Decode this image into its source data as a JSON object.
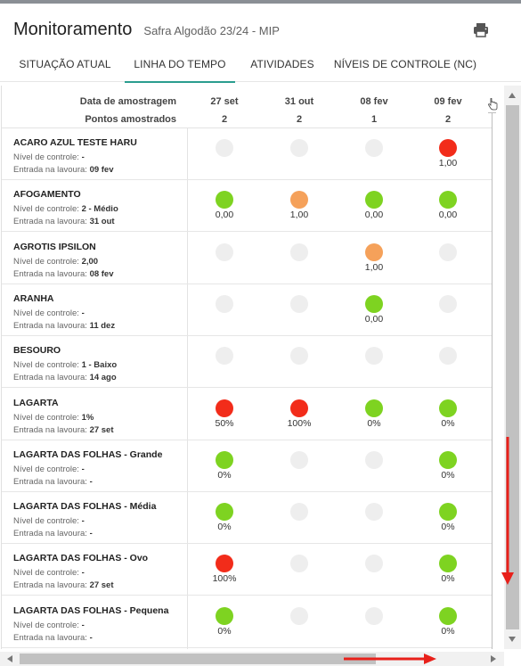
{
  "header": {
    "title": "Monitoramento",
    "subtitle": "Safra Algodão 23/24 - MIP",
    "print_icon": "printer-icon"
  },
  "tabs": [
    {
      "label": "SITUAÇÃO ATUAL",
      "active": false
    },
    {
      "label": "LINHA DO TEMPO",
      "active": true
    },
    {
      "label": "ATIVIDADES",
      "active": false
    },
    {
      "label": "NÍVEIS DE CONTROLE (NC)",
      "active": false
    }
  ],
  "grid": {
    "date_label": "Data de amostragem",
    "points_label": "Pontos amostrados",
    "nc_label": "Nível de controle:",
    "entry_label": "Entrada na lavoura:",
    "columns": [
      {
        "date": "27 set",
        "points": "2"
      },
      {
        "date": "31 out",
        "points": "2"
      },
      {
        "date": "08 fev",
        "points": "1"
      },
      {
        "date": "09 fev",
        "points": "2"
      }
    ],
    "rows": [
      {
        "name": "ACARO AZUL TESTE HARU",
        "nc": "-",
        "entry": "09 fev",
        "cells": [
          {
            "status": "none",
            "value": ""
          },
          {
            "status": "none",
            "value": ""
          },
          {
            "status": "none",
            "value": ""
          },
          {
            "status": "red",
            "value": "1,00"
          }
        ]
      },
      {
        "name": "AFOGAMENTO",
        "nc": "2 - Médio",
        "entry": "31 out",
        "cells": [
          {
            "status": "green",
            "value": "0,00"
          },
          {
            "status": "orange",
            "value": "1,00"
          },
          {
            "status": "green",
            "value": "0,00"
          },
          {
            "status": "green",
            "value": "0,00"
          }
        ]
      },
      {
        "name": "AGROTIS IPSILON",
        "nc": "2,00",
        "entry": "08 fev",
        "cells": [
          {
            "status": "none",
            "value": ""
          },
          {
            "status": "none",
            "value": ""
          },
          {
            "status": "orange",
            "value": "1,00"
          },
          {
            "status": "none",
            "value": ""
          }
        ]
      },
      {
        "name": "ARANHA",
        "nc": "-",
        "entry": "11 dez",
        "cells": [
          {
            "status": "none",
            "value": ""
          },
          {
            "status": "none",
            "value": ""
          },
          {
            "status": "green",
            "value": "0,00"
          },
          {
            "status": "none",
            "value": ""
          }
        ]
      },
      {
        "name": "BESOURO",
        "nc": "1 - Baixo",
        "entry": "14 ago",
        "cells": [
          {
            "status": "none",
            "value": ""
          },
          {
            "status": "none",
            "value": ""
          },
          {
            "status": "none",
            "value": ""
          },
          {
            "status": "none",
            "value": ""
          }
        ]
      },
      {
        "name": "LAGARTA",
        "nc": "1%",
        "entry": "27 set",
        "cells": [
          {
            "status": "red",
            "value": "50%"
          },
          {
            "status": "red",
            "value": "100%"
          },
          {
            "status": "green",
            "value": "0%"
          },
          {
            "status": "green",
            "value": "0%"
          }
        ]
      },
      {
        "name": "LAGARTA DAS FOLHAS - Grande",
        "nc": "-",
        "entry": "-",
        "cells": [
          {
            "status": "green",
            "value": "0%"
          },
          {
            "status": "none",
            "value": ""
          },
          {
            "status": "none",
            "value": ""
          },
          {
            "status": "green",
            "value": "0%"
          }
        ]
      },
      {
        "name": "LAGARTA DAS FOLHAS - Média",
        "nc": "-",
        "entry": "-",
        "cells": [
          {
            "status": "green",
            "value": "0%"
          },
          {
            "status": "none",
            "value": ""
          },
          {
            "status": "none",
            "value": ""
          },
          {
            "status": "green",
            "value": "0%"
          }
        ]
      },
      {
        "name": "LAGARTA DAS FOLHAS - Ovo",
        "nc": "-",
        "entry": "27 set",
        "cells": [
          {
            "status": "red",
            "value": "100%"
          },
          {
            "status": "none",
            "value": ""
          },
          {
            "status": "none",
            "value": ""
          },
          {
            "status": "green",
            "value": "0%"
          }
        ]
      },
      {
        "name": "LAGARTA DAS FOLHAS - Pequena",
        "nc": "-",
        "entry": "-",
        "cells": [
          {
            "status": "green",
            "value": "0%"
          },
          {
            "status": "none",
            "value": ""
          },
          {
            "status": "none",
            "value": ""
          },
          {
            "status": "green",
            "value": "0%"
          }
        ]
      }
    ]
  },
  "colors": {
    "green": "#7ed321",
    "orange": "#f5a15a",
    "red": "#f22c1a",
    "empty": "#eeeeee",
    "tab_indicator": "#2a9d8f",
    "annotation_arrow": "#e8201a"
  },
  "scrollbars": {
    "vertical_position": 0.96,
    "horizontal_position": 0.0
  }
}
